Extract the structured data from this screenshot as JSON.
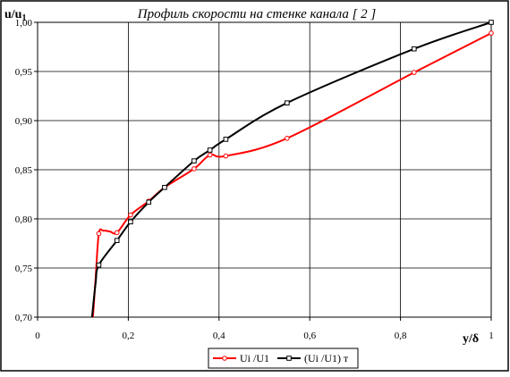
{
  "chart_data": {
    "type": "line",
    "title": "Профиль скорости на стенке канала [ 2 ]",
    "ylabel": "u/u",
    "ylabel_sub": "1",
    "xlabel": "y/δ",
    "xlim": [
      0,
      1
    ],
    "ylim": [
      0.7,
      1.0
    ],
    "x_ticks": [
      0,
      0.2,
      0.4,
      0.6,
      0.8,
      1
    ],
    "x_tick_labels": [
      "0",
      "0,2",
      "0,4",
      "0,6",
      "0,8",
      "1"
    ],
    "y_ticks": [
      0.7,
      0.75,
      0.8,
      0.85,
      0.9,
      0.95,
      1.0
    ],
    "y_tick_labels": [
      "0,70",
      "0,75",
      "0,80",
      "0,85",
      "0,90",
      "0,95",
      "1,00"
    ],
    "grid": true,
    "legend_position": "bottom",
    "series": [
      {
        "name": "Ui /U1",
        "color": "#ff0000",
        "points": [
          [
            0.122,
            0.7
          ],
          [
            0.128,
            0.74
          ],
          [
            0.135,
            0.785
          ],
          [
            0.145,
            0.788
          ],
          [
            0.16,
            0.787
          ],
          [
            0.175,
            0.786
          ],
          [
            0.205,
            0.804
          ],
          [
            0.245,
            0.818
          ],
          [
            0.28,
            0.832
          ],
          [
            0.345,
            0.851
          ],
          [
            0.38,
            0.865
          ],
          [
            0.415,
            0.864
          ],
          [
            0.55,
            0.882
          ],
          [
            0.83,
            0.949
          ],
          [
            1.0,
            0.989
          ]
        ],
        "markers": [
          [
            0.135,
            0.785
          ],
          [
            0.175,
            0.786
          ],
          [
            0.205,
            0.804
          ],
          [
            0.245,
            0.818
          ],
          [
            0.28,
            0.832
          ],
          [
            0.345,
            0.851
          ],
          [
            0.38,
            0.865
          ],
          [
            0.415,
            0.864
          ],
          [
            0.55,
            0.882
          ],
          [
            0.83,
            0.949
          ],
          [
            1.0,
            0.989
          ]
        ]
      },
      {
        "name": "(Ui /U1) т",
        "color": "#000000",
        "points": [
          [
            0.12,
            0.7
          ],
          [
            0.128,
            0.735
          ],
          [
            0.135,
            0.753
          ],
          [
            0.175,
            0.778
          ],
          [
            0.205,
            0.797
          ],
          [
            0.245,
            0.817
          ],
          [
            0.28,
            0.832
          ],
          [
            0.345,
            0.859
          ],
          [
            0.38,
            0.87
          ],
          [
            0.415,
            0.881
          ],
          [
            0.55,
            0.918
          ],
          [
            0.83,
            0.973
          ],
          [
            1.0,
            1.0
          ]
        ],
        "markers": [
          [
            0.135,
            0.753
          ],
          [
            0.175,
            0.778
          ],
          [
            0.205,
            0.797
          ],
          [
            0.245,
            0.817
          ],
          [
            0.28,
            0.832
          ],
          [
            0.345,
            0.859
          ],
          [
            0.38,
            0.87
          ],
          [
            0.415,
            0.881
          ],
          [
            0.55,
            0.918
          ],
          [
            0.83,
            0.973
          ],
          [
            1.0,
            1.0
          ]
        ]
      }
    ]
  }
}
